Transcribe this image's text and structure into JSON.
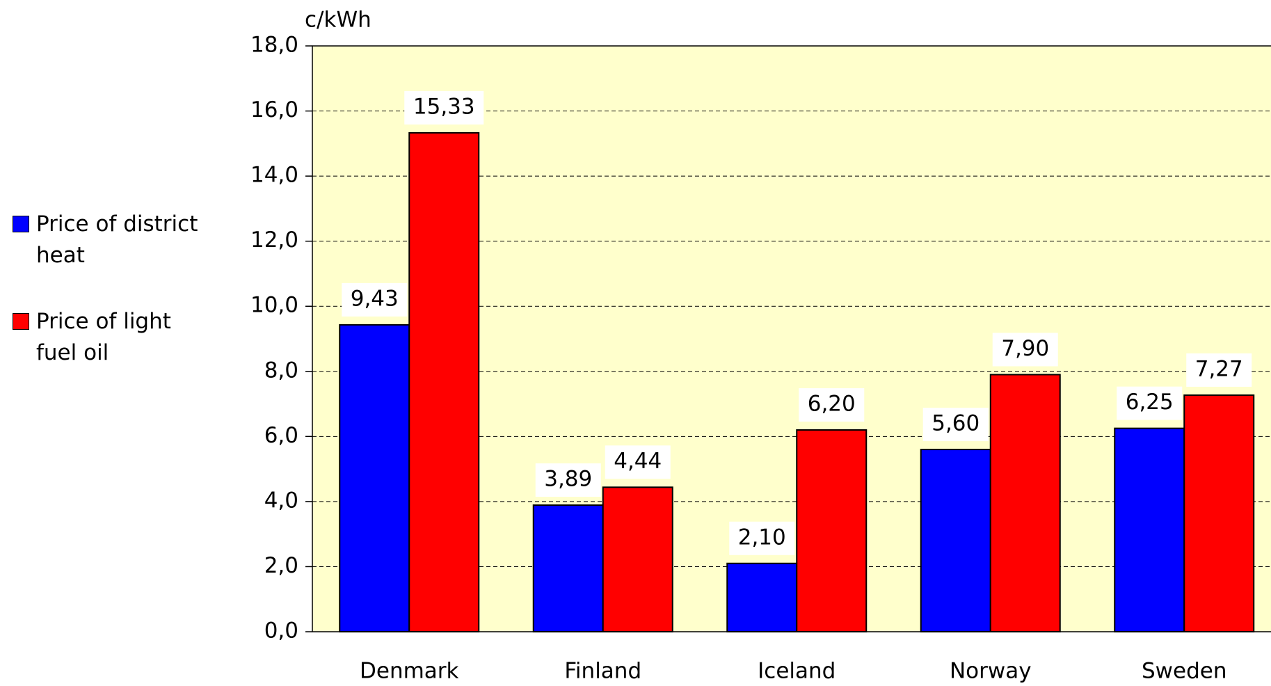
{
  "chart_data": {
    "type": "bar",
    "y_axis_label": "c/kWh",
    "categories": [
      "Denmark",
      "Finland",
      "Iceland",
      "Norway",
      "Sweden"
    ],
    "series": [
      {
        "name": "Price of district heat",
        "color": "#0000ff",
        "values": [
          9.43,
          3.89,
          2.1,
          5.6,
          6.25
        ],
        "value_labels": [
          "9,43",
          "3,89",
          "2,10",
          "5,60",
          "6,25"
        ]
      },
      {
        "name": "Price of light fuel oil",
        "color": "#ff0000",
        "values": [
          15.33,
          4.44,
          6.2,
          7.9,
          7.27
        ],
        "value_labels": [
          "15,33",
          "4,44",
          "6,20",
          "7,90",
          "7,27"
        ]
      }
    ],
    "ylim": [
      0,
      18
    ],
    "yticks": [
      {
        "value": 0,
        "label": "0,0"
      },
      {
        "value": 2,
        "label": "2,0"
      },
      {
        "value": 4,
        "label": "4,0"
      },
      {
        "value": 6,
        "label": "6,0"
      },
      {
        "value": 8,
        "label": "8,0"
      },
      {
        "value": 10,
        "label": "10,0"
      },
      {
        "value": 12,
        "label": "12,0"
      },
      {
        "value": 14,
        "label": "14,0"
      },
      {
        "value": 16,
        "label": "16,0"
      },
      {
        "value": 18,
        "label": "18,0"
      }
    ],
    "grid": true,
    "legend": "left",
    "plot_background": "#ffffcc"
  }
}
